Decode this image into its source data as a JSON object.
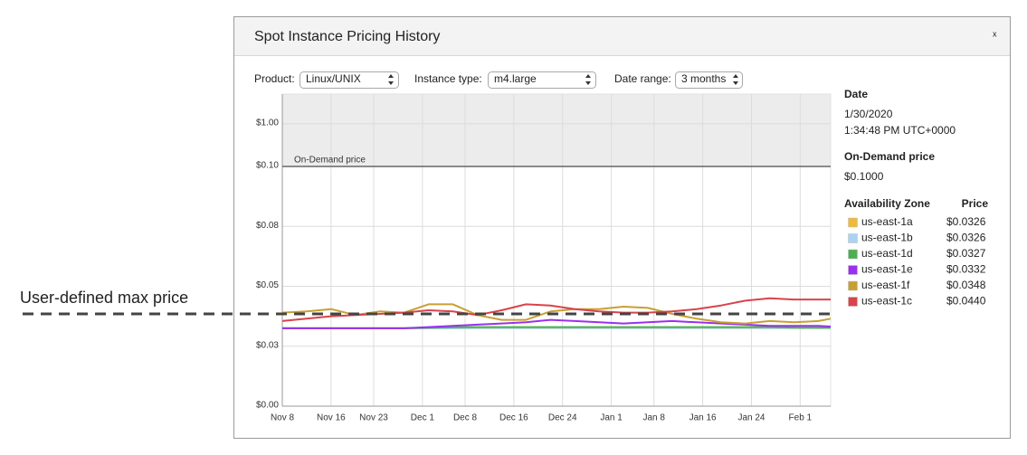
{
  "dialog": {
    "title": "Spot Instance Pricing History",
    "close": "x"
  },
  "controls": {
    "product_label": "Product:",
    "product": "Linux/UNIX",
    "instance_label": "Instance type:",
    "instance": "m4.large",
    "range_label": "Date range:",
    "range": "3 months"
  },
  "annotation": {
    "label": "User-defined max price",
    "value": 0.0385
  },
  "chart_data": {
    "type": "line",
    "yscale": "linear up to on-demand price, log above",
    "ylim": [
      0,
      5
    ],
    "yticks": [
      {
        "value": 0,
        "label": "$0.00"
      },
      {
        "value": 0.025,
        "label": "$0.03"
      },
      {
        "value": 0.05,
        "label": "$0.05"
      },
      {
        "value": 0.075,
        "label": "$0.08"
      },
      {
        "value": 0.1,
        "label": "$0.10"
      },
      {
        "value": 1,
        "label": "$1.00"
      }
    ],
    "on_demand_price": 0.1,
    "on_demand_label": "On-Demand price",
    "xlim": [
      "Nov 8",
      "Feb 6"
    ],
    "xticks": [
      "Nov 8",
      "Nov 16",
      "Nov 23",
      "Dec 1",
      "Dec 8",
      "Dec 16",
      "Dec 24",
      "Jan 1",
      "Jan 8",
      "Jan 16",
      "Jan 24",
      "Feb 1"
    ],
    "grid": true,
    "x": [
      "Nov 8",
      "Nov 12",
      "Nov 16",
      "Nov 20",
      "Nov 24",
      "Nov 28",
      "Dec 2",
      "Dec 6",
      "Dec 10",
      "Dec 14",
      "Dec 18",
      "Dec 22",
      "Dec 26",
      "Dec 30",
      "Jan 3",
      "Jan 7",
      "Jan 11",
      "Jan 15",
      "Jan 19",
      "Jan 23",
      "Jan 27",
      "Jan 31",
      "Feb 4",
      "Feb 6"
    ],
    "series": [
      {
        "name": "us-east-1a",
        "color": "#f0b93a",
        "values": [
          0.0325,
          0.0325,
          0.0325,
          0.0325,
          0.0325,
          0.0325,
          0.0325,
          0.0326,
          0.0326,
          0.0326,
          0.0326,
          0.0326,
          0.0326,
          0.0326,
          0.0326,
          0.0326,
          0.0326,
          0.0326,
          0.0326,
          0.0326,
          0.0326,
          0.0326,
          0.0326,
          0.0326
        ]
      },
      {
        "name": "us-east-1b",
        "color": "#a9d3f0",
        "values": [
          0.0325,
          0.0325,
          0.0325,
          0.0325,
          0.0325,
          0.0325,
          0.0325,
          0.0325,
          0.0326,
          0.0326,
          0.0326,
          0.0326,
          0.0326,
          0.0326,
          0.0326,
          0.0326,
          0.0326,
          0.0326,
          0.0326,
          0.0326,
          0.0326,
          0.0326,
          0.0326,
          0.0326
        ]
      },
      {
        "name": "us-east-1d",
        "color": "#4caf50",
        "values": [
          0.0325,
          0.0325,
          0.0325,
          0.0325,
          0.0325,
          0.0325,
          0.0327,
          0.0329,
          0.033,
          0.033,
          0.033,
          0.033,
          0.033,
          0.033,
          0.033,
          0.033,
          0.033,
          0.033,
          0.033,
          0.033,
          0.033,
          0.0328,
          0.0327,
          0.0327
        ]
      },
      {
        "name": "us-east-1e",
        "color": "#9b30ee",
        "values": [
          0.0325,
          0.0325,
          0.0325,
          0.0325,
          0.0325,
          0.0325,
          0.033,
          0.0335,
          0.034,
          0.0345,
          0.035,
          0.036,
          0.0355,
          0.035,
          0.0345,
          0.035,
          0.0355,
          0.035,
          0.0345,
          0.034,
          0.0335,
          0.0335,
          0.0335,
          0.0332
        ]
      },
      {
        "name": "us-east-1f",
        "color": "#c8a032",
        "values": [
          0.039,
          0.0395,
          0.0405,
          0.038,
          0.0395,
          0.039,
          0.0425,
          0.0425,
          0.038,
          0.036,
          0.036,
          0.0395,
          0.0405,
          0.0405,
          0.0415,
          0.041,
          0.0385,
          0.0365,
          0.035,
          0.0345,
          0.0355,
          0.035,
          0.0355,
          0.0365
        ]
      },
      {
        "name": "us-east-1c",
        "color": "#d9434b",
        "values": [
          0.0355,
          0.0365,
          0.0375,
          0.038,
          0.0385,
          0.039,
          0.04,
          0.0395,
          0.038,
          0.04,
          0.0425,
          0.042,
          0.0405,
          0.0395,
          0.039,
          0.039,
          0.0395,
          0.0405,
          0.042,
          0.044,
          0.045,
          0.0445,
          0.0445,
          0.0445
        ]
      }
    ]
  },
  "details": {
    "date_heading": "Date",
    "date": "1/30/2020",
    "time": "1:34:48 PM UTC+0000",
    "on_demand_heading": "On-Demand price",
    "on_demand_price": "$0.1000",
    "zone_heading": "Availability Zone",
    "price_heading": "Price",
    "prices": [
      "$0.0326",
      "$0.0326",
      "$0.0327",
      "$0.0332",
      "$0.0348",
      "$0.0440"
    ]
  }
}
